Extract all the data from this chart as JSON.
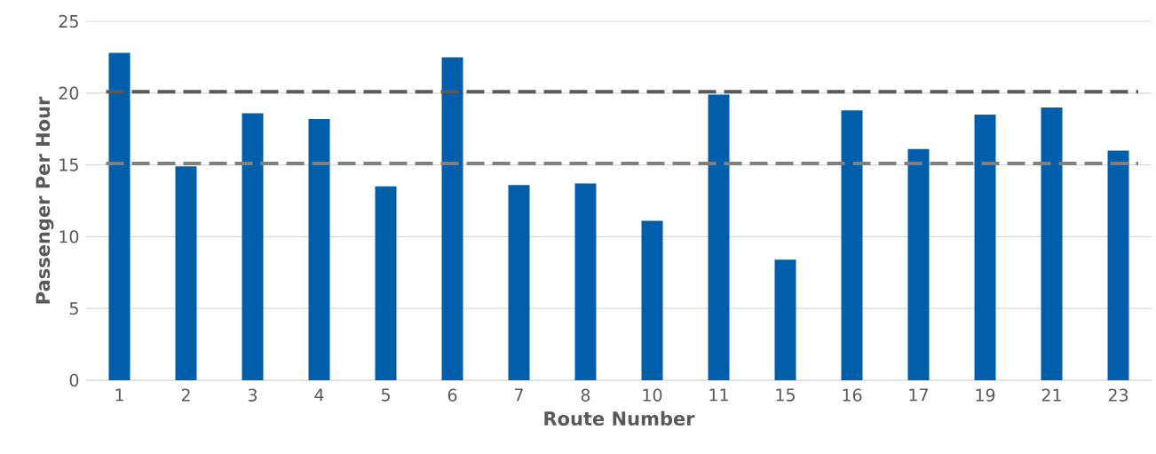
{
  "chart_data": {
    "type": "bar",
    "xlabel": "Route Number",
    "ylabel": "Passenger Per Hour",
    "categories": [
      "1",
      "2",
      "3",
      "4",
      "5",
      "6",
      "7",
      "8",
      "10",
      "11",
      "15",
      "16",
      "17",
      "19",
      "21",
      "23"
    ],
    "values": [
      22.8,
      14.9,
      18.6,
      18.2,
      13.5,
      22.5,
      13.6,
      13.7,
      11.1,
      19.9,
      8.4,
      18.8,
      16.1,
      18.5,
      19.0,
      16.0
    ],
    "color": "#005eaa",
    "ylim": [
      0,
      25
    ],
    "yticks": [
      0,
      5,
      10,
      15,
      20,
      25
    ],
    "grid": "y",
    "ref_lines": [
      {
        "axis": "y",
        "value": 20.1,
        "color": "#595959",
        "line_style": "dashed"
      },
      {
        "axis": "y",
        "value": 15.1,
        "color": "#808080",
        "line_style": "dashed"
      }
    ]
  }
}
